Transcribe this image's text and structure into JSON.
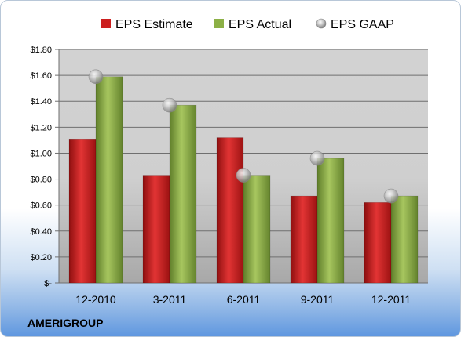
{
  "chart_data": {
    "type": "bar",
    "categories": [
      "12-2010",
      "3-2011",
      "6-2011",
      "9-2011",
      "12-2011"
    ],
    "series": [
      {
        "name": "EPS Estimate",
        "kind": "bar",
        "color": "#cc1f1f",
        "values": [
          1.11,
          0.83,
          1.12,
          0.67,
          0.62
        ]
      },
      {
        "name": "EPS Actual",
        "kind": "bar",
        "color": "#8cb046",
        "values": [
          1.59,
          1.37,
          0.83,
          0.96,
          0.67
        ]
      },
      {
        "name": "EPS GAAP",
        "kind": "marker",
        "color": "#b9b9b9",
        "values": [
          1.59,
          1.37,
          0.83,
          0.96,
          0.67
        ]
      }
    ],
    "yticks": [
      0,
      0.2,
      0.4,
      0.6,
      0.8,
      1.0,
      1.2,
      1.4,
      1.6,
      1.8
    ],
    "ytick_labels": [
      "$-",
      "$0.20",
      "$0.40",
      "$0.60",
      "$0.80",
      "$1.00",
      "$1.20",
      "$1.40",
      "$1.60",
      "$1.80"
    ],
    "ylim": [
      0,
      1.8
    ],
    "grid": true,
    "legend_position": "top"
  },
  "footer": {
    "company": "AMERIGROUP"
  }
}
